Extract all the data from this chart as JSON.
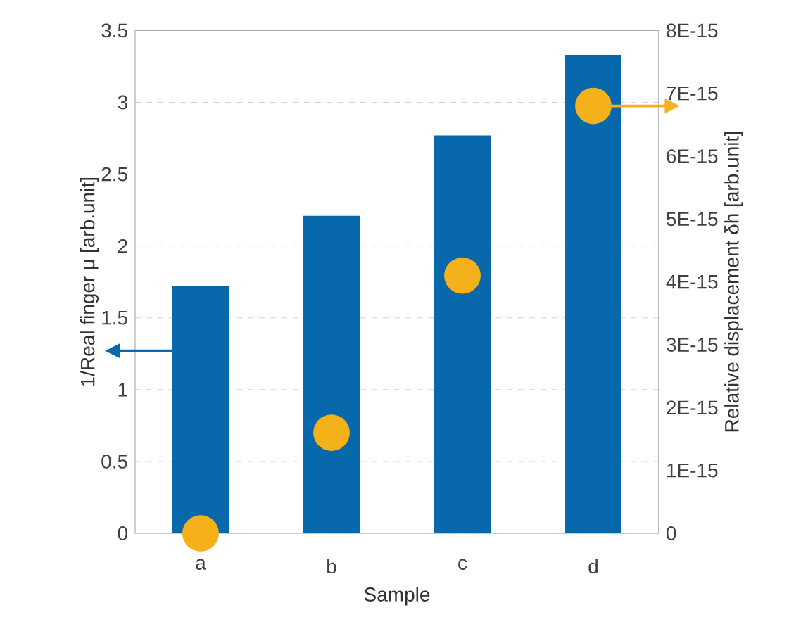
{
  "chart_data": {
    "type": "bar",
    "xlabel": "Sample",
    "ylabel": "1/Real finger μ [arb.unit]",
    "y2label": "Relative displacement δh [arb.unit]",
    "categories": [
      "a",
      "b",
      "c",
      "d"
    ],
    "series": [
      {
        "color": "#0868ac",
        "values": [
          1.72,
          2.21,
          2.77,
          3.33
        ]
      },
      {
        "type": "scatter",
        "axis": "y2",
        "color": "#f5b11a",
        "marker": "circle",
        "values": [
          0,
          1.6e-15,
          4.1e-15,
          6.8e-15
        ]
      }
    ],
    "ylim": [
      0,
      3.5
    ],
    "yticks": [
      0,
      0.5,
      1,
      1.5,
      2,
      2.5,
      3,
      3.5
    ],
    "y2lim": [
      0,
      8e-15
    ],
    "y2ticks": [
      0,
      {
        "value": 1e-15,
        "label": "1E-15"
      },
      {
        "value": 2e-15,
        "label": "2E-15"
      },
      {
        "value": 3e-15,
        "label": "3E-15"
      },
      {
        "value": 4e-15,
        "label": "4E-15"
      },
      {
        "value": 5e-15,
        "label": "5E-15"
      },
      {
        "value": 6e-15,
        "label": "6E-15"
      },
      {
        "value": 7e-15,
        "label": "7E-15"
      },
      {
        "value": 8e-15,
        "label": "8E-15"
      }
    ],
    "grid": "y"
  }
}
